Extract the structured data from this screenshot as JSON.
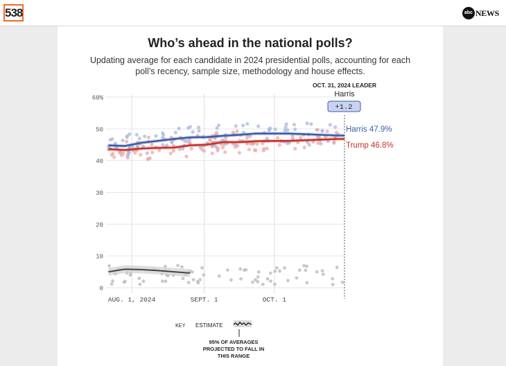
{
  "header": {
    "logo_text": "538",
    "abc_circle": "abc",
    "abc_news": "NEWS"
  },
  "title": "Who’s ahead in the national polls?",
  "subtitle": "Updating average for each candidate in 2024 presidential polls, accounting for each poll’s recency, sample size, methodology and house effects.",
  "leader": {
    "date_label": "OCT. 31, 2024 LEADER",
    "name": "Harris",
    "margin": "+1.2"
  },
  "labels": {
    "harris": "Harris 47.9%",
    "trump": "Trump 46.8%"
  },
  "key": {
    "key_label": "KEY",
    "estimate_label": "ESTIMATE",
    "range_line1": "95% OF AVERAGES",
    "range_line2": "PROJECTED TO FALL IN",
    "range_line3": "THIS RANGE"
  },
  "colors": {
    "harris": "#3a5dab",
    "trump": "#c8312b",
    "other": "#555555",
    "harris_dot": "#a9b9dd",
    "trump_dot": "#ecaaa6",
    "other_dot": "#bbbbbb"
  },
  "chart_data": {
    "type": "line",
    "ylim": [
      0,
      60
    ],
    "yticks": [
      "0",
      "10",
      "20",
      "30",
      "40",
      "50",
      "60%"
    ],
    "xticks": [
      "AUG. 1, 2024",
      "SEPT. 1",
      "OCT. 1"
    ],
    "x_dates": [
      "2024-07-22",
      "2024-07-29",
      "2024-08-05",
      "2024-08-12",
      "2024-08-19",
      "2024-08-26",
      "2024-09-02",
      "2024-09-09",
      "2024-09-16",
      "2024-09-23",
      "2024-09-30",
      "2024-10-07",
      "2024-10-14",
      "2024-10-21",
      "2024-10-28",
      "2024-10-31"
    ],
    "series": [
      {
        "name": "Harris",
        "values": [
          44.8,
          44.6,
          45.6,
          46.2,
          46.8,
          47.3,
          47.4,
          47.8,
          48.1,
          48.5,
          48.5,
          48.5,
          48.3,
          48.1,
          47.9,
          47.9
        ]
      },
      {
        "name": "Trump",
        "values": [
          43.6,
          43.3,
          43.8,
          44.0,
          44.1,
          44.8,
          45.0,
          45.8,
          45.8,
          46.1,
          46.2,
          46.2,
          46.4,
          46.6,
          46.8,
          46.8
        ]
      }
    ],
    "other_estimate": {
      "x_dates": [
        "2024-07-22",
        "2024-07-29",
        "2024-08-05",
        "2024-08-12",
        "2024-08-19",
        "2024-08-26"
      ],
      "values": [
        5.0,
        5.8,
        5.7,
        5.4,
        5.0,
        4.6
      ]
    },
    "end_date": "2024-10-31"
  }
}
